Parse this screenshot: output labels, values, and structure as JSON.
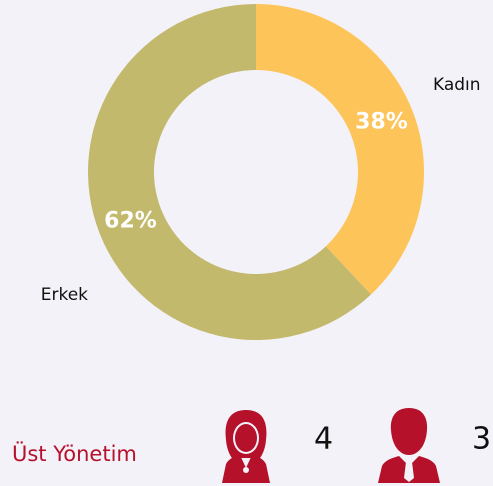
{
  "chart_data": {
    "type": "pie",
    "donut": true,
    "categories": [
      "Kadın",
      "Erkek"
    ],
    "values": [
      38,
      62
    ],
    "value_labels": [
      "38%",
      "62%"
    ],
    "colors": [
      "#fdc45a",
      "#c2b96d"
    ]
  },
  "stats": {
    "label": "Üst Yönetim",
    "women": 4,
    "men": 3
  }
}
